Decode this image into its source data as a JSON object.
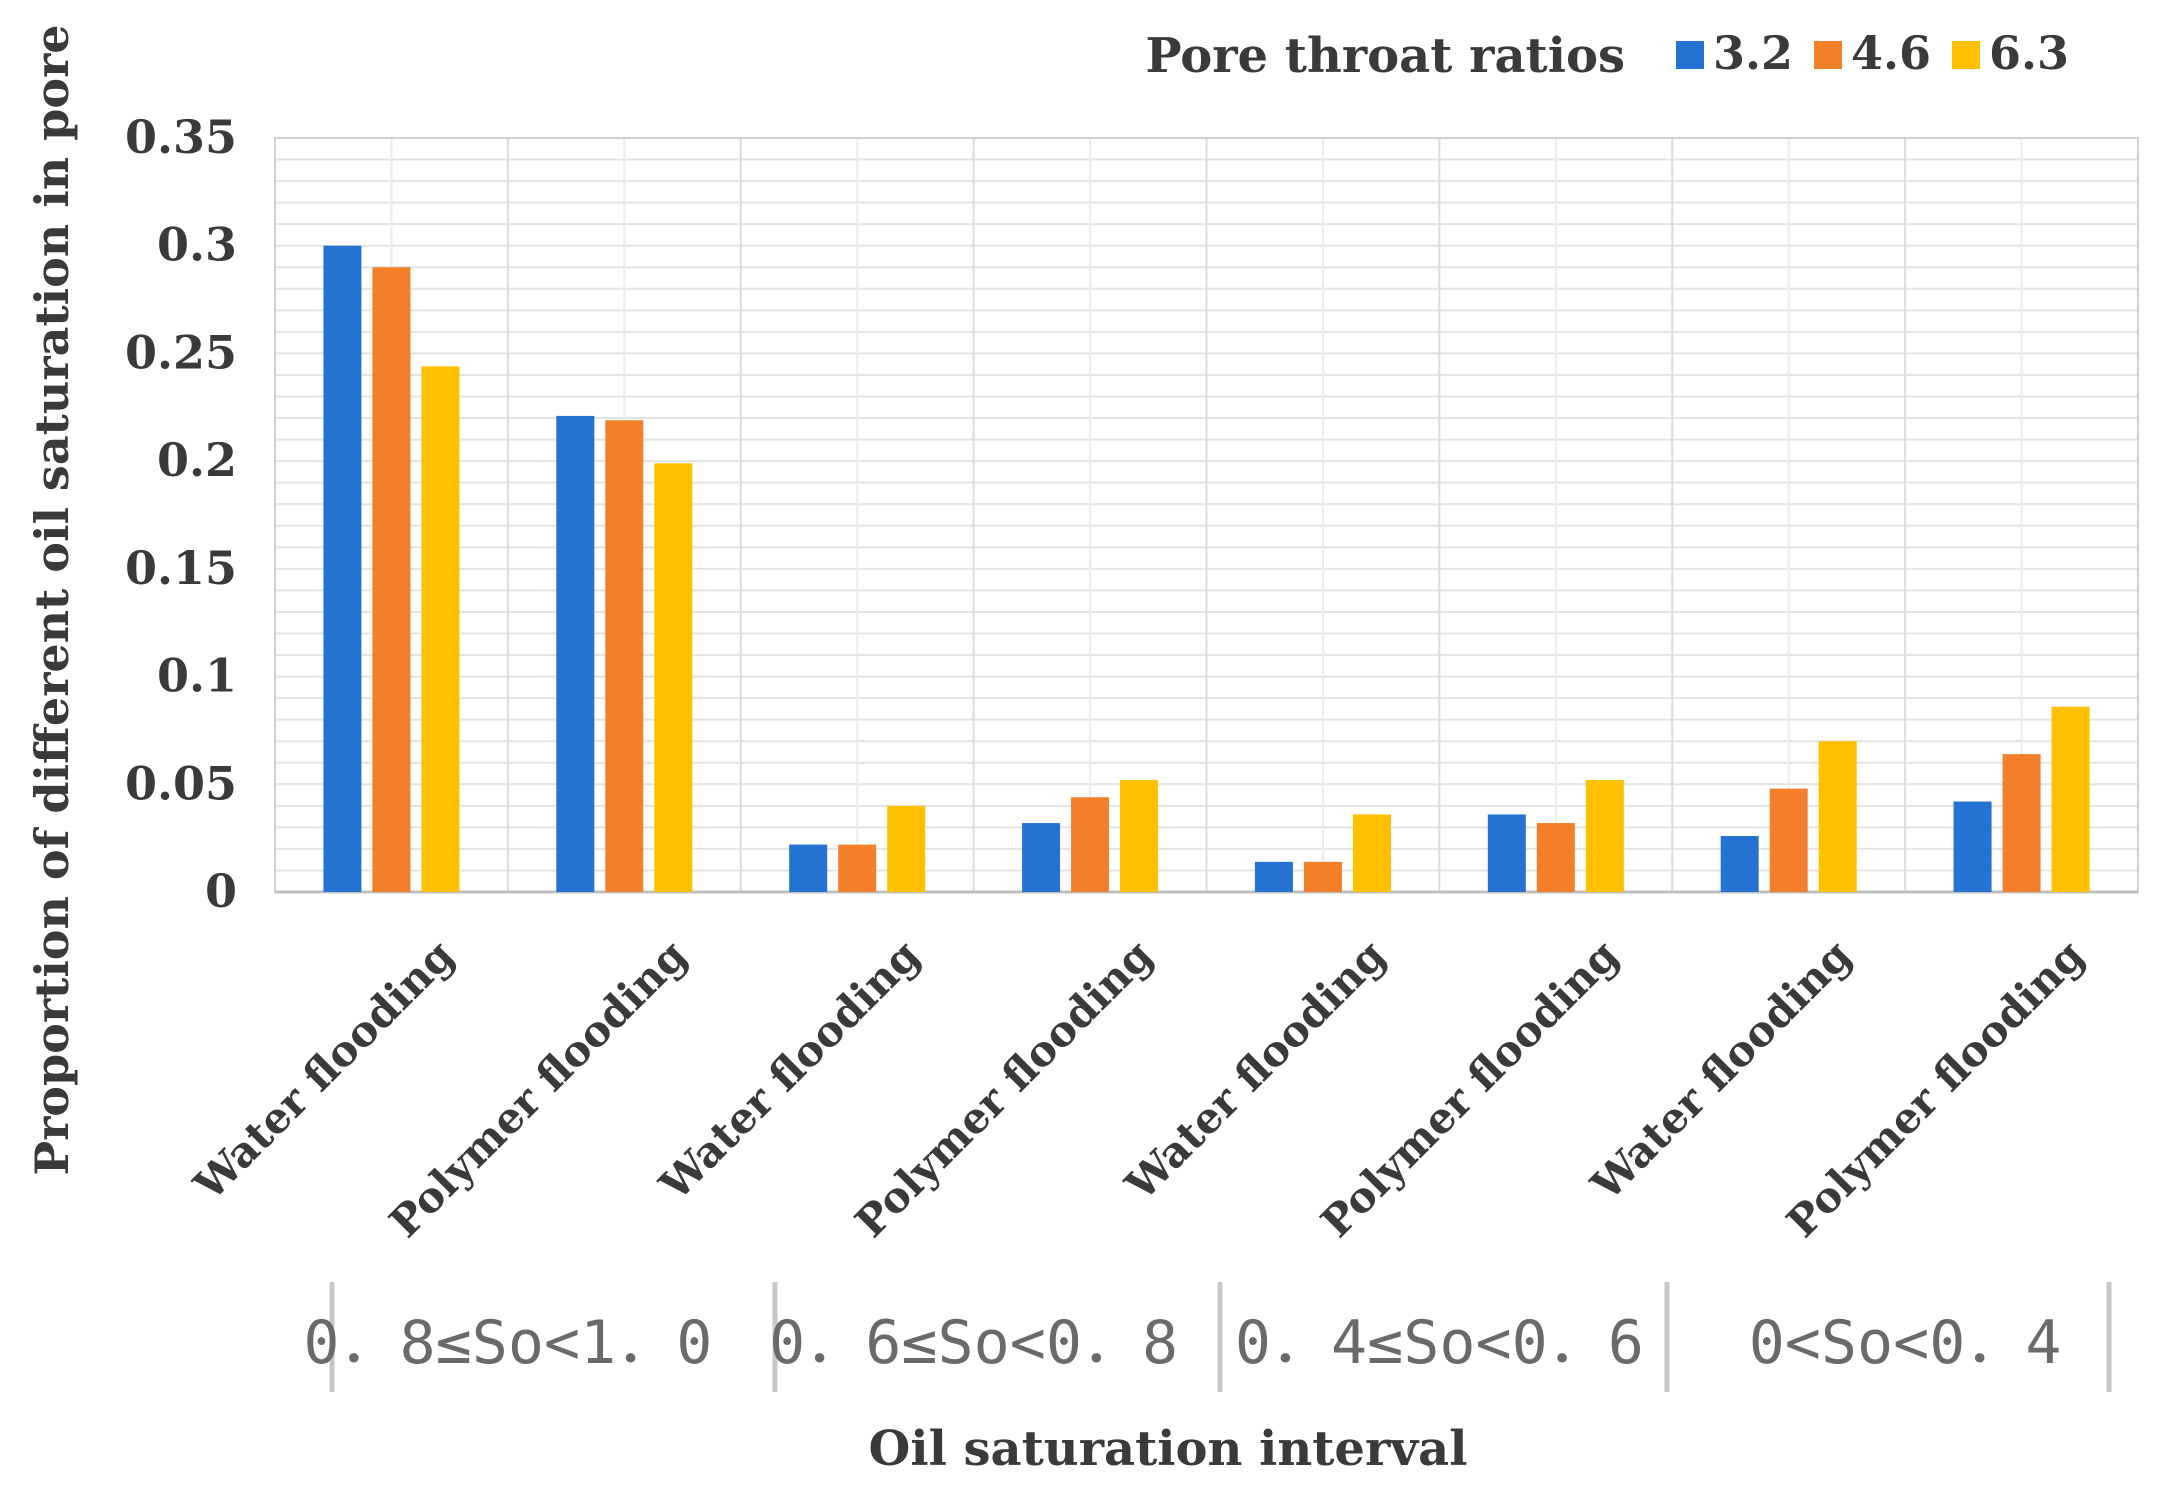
{
  "chart_data": {
    "type": "bar",
    "title": "",
    "xlabel": "Oil saturation interval",
    "ylabel": "Proportion of different oil saturation in pore",
    "legend_title": "Pore throat ratios",
    "legend_position": "top-right",
    "ylim": [
      0,
      0.35
    ],
    "y_ticks": [
      0,
      0.05,
      0.1,
      0.15,
      0.2,
      0.25,
      0.3,
      0.35
    ],
    "y_tick_labels": [
      "0",
      "0.05",
      "0.1",
      "0.15",
      "0.2",
      "0.25",
      "0.3",
      "0.35"
    ],
    "grid": true,
    "categories": [
      "Water flooding",
      "Polymer flooding",
      "Water flooding",
      "Polymer flooding",
      "Water flooding",
      "Polymer flooding",
      "Water flooding",
      "Polymer flooding"
    ],
    "groups": [
      {
        "label": "0.8≤So<1.0",
        "display": "0．8≤So<1．0"
      },
      {
        "label": "0.6≤So<0.8",
        "display": "0．6≤So<0．8"
      },
      {
        "label": "0.4≤So<0.6",
        "display": "0．4≤So<0．6"
      },
      {
        "label": "0<So<0.4",
        "display": "0<So<0．4"
      }
    ],
    "series": [
      {
        "name": "3.2",
        "color": "#2473d2",
        "values": [
          0.3,
          0.221,
          0.022,
          0.032,
          0.014,
          0.036,
          0.026,
          0.042
        ]
      },
      {
        "name": "4.6",
        "color": "#f47f2a",
        "values": [
          0.29,
          0.219,
          0.022,
          0.044,
          0.014,
          0.032,
          0.048,
          0.064
        ]
      },
      {
        "name": "6.3",
        "color": "#ffc000",
        "values": [
          0.244,
          0.199,
          0.04,
          0.052,
          0.036,
          0.052,
          0.07,
          0.086
        ]
      }
    ]
  }
}
